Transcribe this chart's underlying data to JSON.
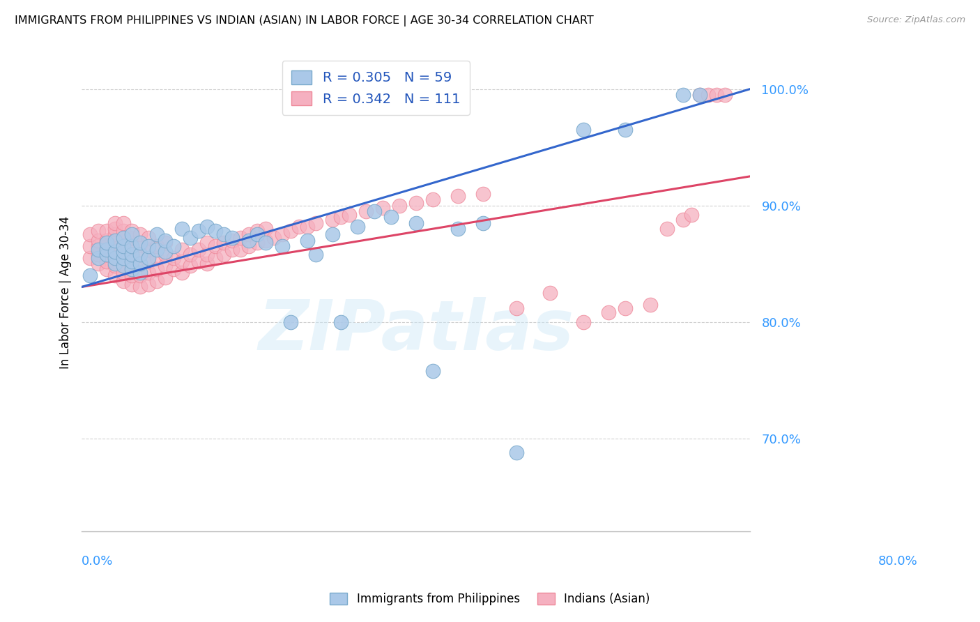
{
  "title": "IMMIGRANTS FROM PHILIPPINES VS INDIAN (ASIAN) IN LABOR FORCE | AGE 30-34 CORRELATION CHART",
  "source": "Source: ZipAtlas.com",
  "ylabel": "In Labor Force | Age 30-34",
  "ytick_labels": [
    "70.0%",
    "80.0%",
    "90.0%",
    "100.0%"
  ],
  "ytick_values": [
    0.7,
    0.8,
    0.9,
    1.0
  ],
  "xlim": [
    0.0,
    0.8
  ],
  "ylim": [
    0.62,
    1.03
  ],
  "blue_R": 0.305,
  "blue_N": 59,
  "pink_R": 0.342,
  "pink_N": 111,
  "blue_label": "Immigrants from Philippines",
  "pink_label": "Indians (Asian)",
  "blue_color": "#aac8e8",
  "pink_color": "#f5b0c0",
  "blue_edge": "#7aaacc",
  "pink_edge": "#ee8899",
  "blue_line_color": "#3366cc",
  "pink_line_color": "#dd4466",
  "watermark": "ZIPatlas",
  "blue_scatter_x": [
    0.01,
    0.02,
    0.02,
    0.03,
    0.03,
    0.03,
    0.04,
    0.04,
    0.04,
    0.04,
    0.05,
    0.05,
    0.05,
    0.05,
    0.05,
    0.06,
    0.06,
    0.06,
    0.06,
    0.06,
    0.07,
    0.07,
    0.07,
    0.07,
    0.08,
    0.08,
    0.09,
    0.09,
    0.1,
    0.1,
    0.11,
    0.12,
    0.13,
    0.14,
    0.15,
    0.16,
    0.17,
    0.18,
    0.2,
    0.21,
    0.22,
    0.24,
    0.25,
    0.27,
    0.28,
    0.3,
    0.31,
    0.33,
    0.35,
    0.37,
    0.4,
    0.42,
    0.45,
    0.48,
    0.52,
    0.6,
    0.65,
    0.72,
    0.74
  ],
  "blue_scatter_y": [
    0.84,
    0.855,
    0.862,
    0.858,
    0.862,
    0.868,
    0.85,
    0.855,
    0.86,
    0.87,
    0.848,
    0.855,
    0.86,
    0.865,
    0.872,
    0.845,
    0.852,
    0.858,
    0.865,
    0.875,
    0.842,
    0.85,
    0.858,
    0.868,
    0.855,
    0.865,
    0.862,
    0.875,
    0.86,
    0.87,
    0.865,
    0.88,
    0.872,
    0.878,
    0.882,
    0.878,
    0.875,
    0.872,
    0.87,
    0.875,
    0.868,
    0.865,
    0.8,
    0.87,
    0.858,
    0.875,
    0.8,
    0.882,
    0.895,
    0.89,
    0.885,
    0.758,
    0.88,
    0.885,
    0.688,
    0.965,
    0.965,
    0.995,
    0.995
  ],
  "pink_scatter_x": [
    0.01,
    0.01,
    0.01,
    0.02,
    0.02,
    0.02,
    0.02,
    0.02,
    0.03,
    0.03,
    0.03,
    0.03,
    0.03,
    0.03,
    0.04,
    0.04,
    0.04,
    0.04,
    0.04,
    0.04,
    0.04,
    0.04,
    0.05,
    0.05,
    0.05,
    0.05,
    0.05,
    0.05,
    0.05,
    0.05,
    0.06,
    0.06,
    0.06,
    0.06,
    0.06,
    0.06,
    0.06,
    0.07,
    0.07,
    0.07,
    0.07,
    0.07,
    0.07,
    0.08,
    0.08,
    0.08,
    0.08,
    0.08,
    0.09,
    0.09,
    0.09,
    0.09,
    0.1,
    0.1,
    0.1,
    0.1,
    0.11,
    0.11,
    0.12,
    0.12,
    0.12,
    0.13,
    0.13,
    0.14,
    0.14,
    0.15,
    0.15,
    0.15,
    0.16,
    0.16,
    0.17,
    0.17,
    0.18,
    0.18,
    0.19,
    0.19,
    0.2,
    0.2,
    0.21,
    0.21,
    0.22,
    0.22,
    0.23,
    0.24,
    0.25,
    0.26,
    0.27,
    0.28,
    0.3,
    0.31,
    0.32,
    0.34,
    0.36,
    0.38,
    0.4,
    0.42,
    0.45,
    0.48,
    0.52,
    0.56,
    0.6,
    0.63,
    0.65,
    0.68,
    0.7,
    0.72,
    0.73,
    0.74,
    0.75,
    0.76,
    0.77
  ],
  "pink_scatter_y": [
    0.855,
    0.865,
    0.875,
    0.85,
    0.858,
    0.865,
    0.87,
    0.878,
    0.845,
    0.852,
    0.858,
    0.865,
    0.87,
    0.878,
    0.84,
    0.848,
    0.855,
    0.862,
    0.868,
    0.875,
    0.88,
    0.885,
    0.835,
    0.842,
    0.85,
    0.858,
    0.865,
    0.872,
    0.878,
    0.885,
    0.832,
    0.84,
    0.848,
    0.856,
    0.864,
    0.872,
    0.878,
    0.83,
    0.84,
    0.85,
    0.858,
    0.866,
    0.875,
    0.832,
    0.842,
    0.852,
    0.862,
    0.872,
    0.835,
    0.845,
    0.855,
    0.865,
    0.838,
    0.848,
    0.858,
    0.868,
    0.845,
    0.855,
    0.842,
    0.852,
    0.862,
    0.848,
    0.858,
    0.852,
    0.862,
    0.85,
    0.858,
    0.868,
    0.855,
    0.865,
    0.858,
    0.868,
    0.862,
    0.87,
    0.862,
    0.872,
    0.865,
    0.875,
    0.868,
    0.878,
    0.87,
    0.88,
    0.872,
    0.875,
    0.878,
    0.882,
    0.882,
    0.885,
    0.888,
    0.89,
    0.892,
    0.895,
    0.898,
    0.9,
    0.902,
    0.905,
    0.908,
    0.91,
    0.812,
    0.825,
    0.8,
    0.808,
    0.812,
    0.815,
    0.88,
    0.888,
    0.892,
    0.995,
    0.995,
    0.995,
    0.995
  ]
}
